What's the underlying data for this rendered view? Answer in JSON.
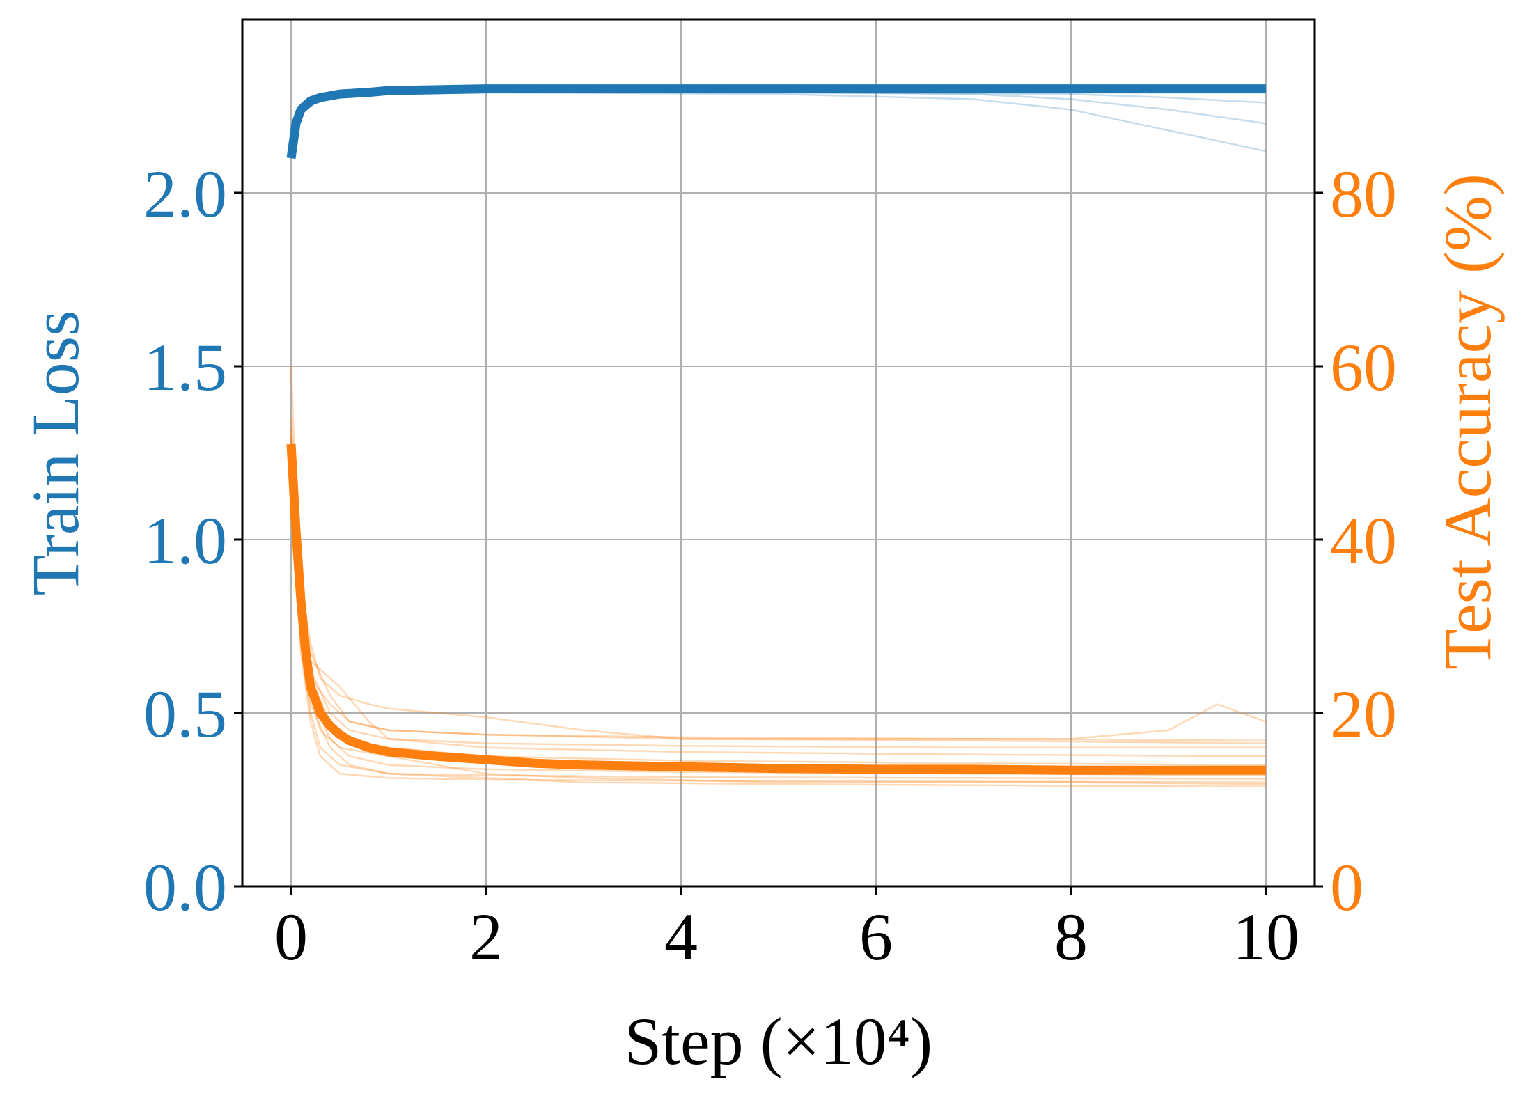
{
  "chart_data": {
    "type": "line",
    "xlabel": "Step (×10⁴)",
    "x_ticks": [
      "0",
      "2",
      "4",
      "6",
      "8",
      "10"
    ],
    "xlim": [
      -0.5,
      10.5
    ],
    "y_left": {
      "label": "Train Loss",
      "color": "#1f77b4",
      "ticks": [
        "0.0",
        "0.5",
        "1.0",
        "1.5",
        "2.0"
      ],
      "ylim": [
        0.0,
        2.5
      ]
    },
    "y_right": {
      "label": "Test Accuracy (%)",
      "color": "#ff7f0e",
      "ticks": [
        "0",
        "20",
        "40",
        "60",
        "80"
      ],
      "ylim": [
        0,
        100
      ]
    },
    "grid": true,
    "series": [
      {
        "axis": "left",
        "color": "#1f77b4",
        "style": "mean",
        "x": [
          0.0,
          0.05,
          0.1,
          0.2,
          0.3,
          0.5,
          0.8,
          1.0,
          2.0,
          4.0,
          6.0,
          8.0,
          10.0
        ],
        "values": [
          2.1,
          2.2,
          2.24,
          2.265,
          2.275,
          2.285,
          2.29,
          2.295,
          2.3,
          2.3,
          2.3,
          2.3,
          2.3
        ]
      },
      {
        "axis": "left",
        "color": "#1f77b4",
        "style": "run",
        "x": [
          0.0,
          0.1,
          0.3,
          0.8,
          2.0,
          5.0,
          7.0,
          8.0,
          9.0,
          10.0
        ],
        "values": [
          2.1,
          2.23,
          2.27,
          2.285,
          2.29,
          2.285,
          2.27,
          2.24,
          2.18,
          2.12
        ]
      },
      {
        "axis": "left",
        "color": "#1f77b4",
        "style": "run",
        "x": [
          0.0,
          0.1,
          0.3,
          0.8,
          2.0,
          5.0,
          7.0,
          8.0,
          9.0,
          10.0
        ],
        "values": [
          2.1,
          2.23,
          2.27,
          2.285,
          2.29,
          2.29,
          2.285,
          2.27,
          2.24,
          2.2
        ]
      },
      {
        "axis": "left",
        "color": "#1f77b4",
        "style": "run",
        "x": [
          0.0,
          0.1,
          0.3,
          0.8,
          2.0,
          5.0,
          8.0,
          9.0,
          10.0
        ],
        "values": [
          2.1,
          2.23,
          2.27,
          2.285,
          2.29,
          2.29,
          2.285,
          2.275,
          2.26
        ]
      },
      {
        "axis": "right",
        "color": "#ff7f0e",
        "style": "mean",
        "x": [
          0.0,
          0.05,
          0.1,
          0.15,
          0.2,
          0.3,
          0.4,
          0.5,
          0.6,
          0.8,
          1.0,
          1.2,
          1.5,
          2.0,
          2.5,
          3.0,
          4.0,
          5.0,
          6.0,
          7.0,
          8.0,
          9.0,
          10.0
        ],
        "values": [
          51,
          41,
          33,
          27,
          23,
          20,
          18.5,
          17.5,
          16.8,
          16,
          15.5,
          15.3,
          15,
          14.6,
          14.2,
          14,
          13.8,
          13.6,
          13.5,
          13.5,
          13.4,
          13.4,
          13.4
        ]
      },
      {
        "axis": "right",
        "color": "#ff7f0e",
        "style": "run",
        "x": [
          0.0,
          0.05,
          0.1,
          0.2,
          0.3,
          0.5,
          0.8,
          1.0,
          1.5,
          2.0,
          3.0,
          4.0,
          6.0,
          8.0,
          9.0,
          9.5,
          10.0
        ],
        "values": [
          60,
          45,
          35,
          28,
          24,
          22,
          21,
          20.5,
          20,
          19.5,
          18,
          17,
          17,
          17,
          18,
          21,
          19
        ]
      },
      {
        "axis": "right",
        "color": "#ff7f0e",
        "style": "run",
        "x": [
          0.0,
          0.1,
          0.2,
          0.3,
          0.5,
          1.0,
          1.5,
          2.0,
          3.0,
          5.0,
          8.0,
          10.0
        ],
        "values": [
          52,
          30,
          22,
          18,
          16,
          15,
          14,
          13,
          12.5,
          12,
          12,
          11.8
        ]
      },
      {
        "axis": "right",
        "color": "#ff7f0e",
        "style": "run",
        "x": [
          0.0,
          0.1,
          0.2,
          0.3,
          0.5,
          1.0,
          2.0,
          3.0,
          5.0,
          8.0,
          10.0
        ],
        "values": [
          48,
          28,
          20,
          16,
          14,
          13,
          12.5,
          12,
          11.8,
          11.6,
          11.5
        ]
      },
      {
        "axis": "right",
        "color": "#ff7f0e",
        "style": "run",
        "x": [
          0.0,
          0.1,
          0.2,
          0.4,
          0.6,
          1.0,
          2.0,
          4.0,
          7.0,
          10.0
        ],
        "values": [
          50,
          33,
          25,
          20,
          18,
          17,
          16,
          15.5,
          15.2,
          15
        ]
      },
      {
        "axis": "right",
        "color": "#ff7f0e",
        "style": "run",
        "x": [
          0.0,
          0.1,
          0.2,
          0.4,
          0.6,
          1.0,
          2.0,
          4.0,
          7.0,
          10.0
        ],
        "values": [
          53,
          32,
          24,
          19,
          17,
          16,
          15,
          14.5,
          14.2,
          14
        ]
      },
      {
        "axis": "right",
        "color": "#ff7f0e",
        "style": "run",
        "x": [
          0.0,
          0.1,
          0.2,
          0.3,
          0.5,
          0.8,
          1.0,
          2.0,
          4.0,
          7.0,
          10.0
        ],
        "values": [
          49,
          31,
          26,
          25,
          23,
          19,
          17,
          16.5,
          16.2,
          16,
          16
        ]
      },
      {
        "axis": "right",
        "color": "#ff7f0e",
        "style": "run",
        "x": [
          0.0,
          0.1,
          0.2,
          0.3,
          0.5,
          1.0,
          2.0,
          4.0,
          7.0,
          10.0
        ],
        "values": [
          47,
          27,
          19,
          15,
          13,
          12.5,
          12.3,
          12.2,
          12.1,
          12
        ]
      },
      {
        "axis": "right",
        "color": "#ff7f0e",
        "style": "run",
        "x": [
          0.0,
          0.1,
          0.2,
          0.4,
          0.6,
          1.0,
          2.0,
          4.0,
          7.0,
          10.0
        ],
        "values": [
          54,
          34,
          27,
          22,
          19,
          18,
          17.5,
          17,
          16.8,
          16.5
        ]
      },
      {
        "axis": "right",
        "color": "#ff7f0e",
        "style": "run",
        "x": [
          0.0,
          0.1,
          0.2,
          0.4,
          0.6,
          1.0,
          2.0,
          4.0,
          7.0,
          10.0
        ],
        "values": [
          51,
          30,
          22,
          17,
          15,
          14,
          13.5,
          13.2,
          13,
          12.8
        ]
      },
      {
        "axis": "right",
        "color": "#ff7f0e",
        "style": "run",
        "x": [
          0.0,
          0.1,
          0.2,
          0.4,
          0.6,
          1.0,
          2.0,
          4.0,
          7.0,
          10.0
        ],
        "values": [
          50,
          31,
          24,
          21,
          19,
          18,
          17.5,
          17.2,
          17,
          16.8
        ]
      },
      {
        "axis": "right",
        "color": "#ff7f0e",
        "style": "run",
        "x": [
          0.0,
          0.1,
          0.2,
          0.4,
          0.6,
          1.0,
          2.0,
          4.0,
          7.0,
          10.0
        ],
        "values": [
          52,
          29,
          21,
          16,
          14,
          13,
          12.8,
          12.6,
          12.5,
          12.4
        ]
      }
    ]
  }
}
